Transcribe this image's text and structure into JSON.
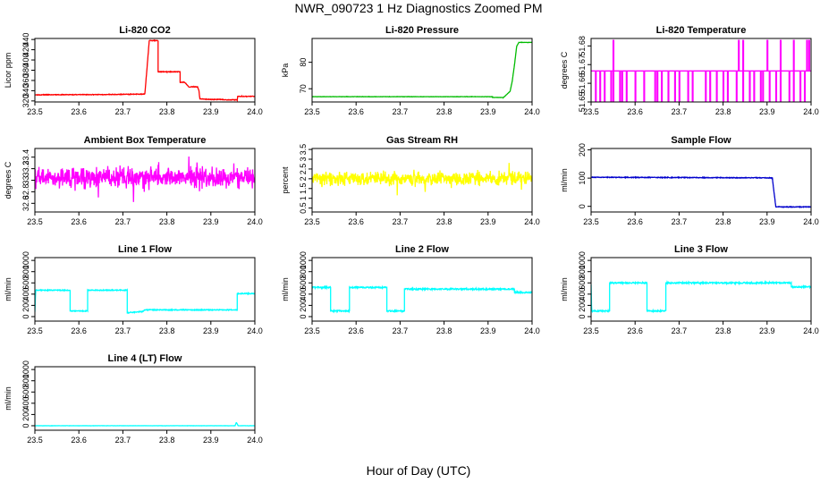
{
  "title": "NWR_090723  1 Hz Diagnostics Zoomed PM",
  "xlabel": "Hour of Day (UTC)",
  "chart_data": [
    {
      "name": "Li-820 CO2",
      "type": "line",
      "color": "#ff0000",
      "ylabel": "Licor ppm",
      "xlim": [
        23.5,
        24.0
      ],
      "xticks": [
        23.5,
        23.6,
        23.7,
        23.8,
        23.9,
        24.0
      ],
      "ylim": [
        318,
        442
      ],
      "yticks": [
        320,
        340,
        360,
        380,
        400,
        420,
        440
      ],
      "x": [
        23.5,
        23.66,
        23.66,
        23.75,
        23.75,
        23.7501,
        23.76,
        23.78,
        23.78,
        23.8,
        23.83,
        23.83,
        23.84,
        23.85,
        23.86,
        23.87,
        23.873,
        23.875,
        23.9,
        23.92,
        23.94,
        23.95,
        23.955,
        23.96,
        23.961,
        23.97,
        23.98,
        23.99,
        24.0
      ],
      "y": [
        332,
        332.5,
        332.5,
        333.4,
        333.4,
        335,
        438,
        438,
        377,
        377,
        377,
        356,
        357,
        347.4,
        347.6,
        347.4,
        340,
        324,
        323,
        323,
        322,
        322.3,
        322,
        322,
        329,
        329,
        329,
        329,
        329
      ],
      "noise": 0.6
    },
    {
      "name": "Li-820 Pressure",
      "type": "line",
      "color": "#00bb00",
      "ylabel": "kPa",
      "xlim": [
        23.5,
        24.0
      ],
      "xticks": [
        23.5,
        23.6,
        23.7,
        23.8,
        23.9,
        24.0
      ],
      "ylim": [
        65,
        89
      ],
      "yticks": [
        70,
        80
      ],
      "x": [
        23.5,
        23.91,
        23.91,
        23.935,
        23.95,
        23.955,
        23.96,
        23.965,
        23.97,
        23.975,
        24.0
      ],
      "y": [
        67,
        67,
        66.7,
        66.7,
        69,
        73,
        79,
        86,
        87.5,
        87.5,
        87.5
      ],
      "noise": 0.05
    },
    {
      "name": "Li-820 Temperature",
      "type": "line",
      "color": "#ff00ff",
      "ylabel": "degrees C",
      "xlim": [
        23.5,
        24.0
      ],
      "xticks": [
        23.5,
        23.6,
        23.7,
        23.8,
        23.9,
        24.0
      ],
      "ylim": [
        51.65,
        51.684
      ],
      "yticks": [
        51.65,
        51.66,
        51.67,
        51.68
      ],
      "base": 51.6666,
      "low": 51.6495,
      "high": 51.683,
      "dips": [
        23.51,
        23.52,
        23.53,
        23.545,
        23.55,
        23.565,
        23.57,
        23.58,
        23.6,
        23.62,
        23.645,
        23.65,
        23.66,
        23.675,
        23.69,
        23.7,
        23.72,
        23.73,
        23.76,
        23.77,
        23.785,
        23.8,
        23.81,
        23.83,
        23.845,
        23.86,
        23.87,
        23.885,
        23.89,
        23.905,
        23.92,
        23.93,
        23.95,
        23.96,
        23.975,
        23.985
      ],
      "spikes": [
        23.55,
        23.835,
        23.845,
        23.9,
        23.93,
        23.96,
        23.99,
        23.995
      ]
    },
    {
      "name": "Ambient Box Temperature",
      "type": "line",
      "color": "#ff00ff",
      "ylabel": "degrees C",
      "xlim": [
        23.5,
        24.0
      ],
      "xticks": [
        23.5,
        23.6,
        23.7,
        23.8,
        23.9,
        24.0
      ],
      "ylim": [
        32.45,
        33.55
      ],
      "yticks": [
        32.6,
        32.8,
        33.0,
        33.2,
        33.4
      ],
      "mean": 33.05,
      "spread": 0.12,
      "seed": 7
    },
    {
      "name": "Gas Stream RH",
      "type": "line",
      "color": "#ffff00",
      "ylabel": "percent",
      "xlim": [
        23.5,
        24.0
      ],
      "xticks": [
        23.5,
        23.6,
        23.7,
        23.8,
        23.9,
        24.0
      ],
      "ylim": [
        0.3,
        3.55
      ],
      "yticks": [
        0.5,
        1.0,
        1.5,
        2.0,
        2.5,
        3.0,
        3.5
      ],
      "mean": 2.0,
      "spread": 0.25,
      "seed": 11
    },
    {
      "name": "Sample Flow",
      "type": "line",
      "color": "#0000cc",
      "ylabel": "ml/min",
      "xlim": [
        23.5,
        24.0
      ],
      "xticks": [
        23.5,
        23.6,
        23.7,
        23.8,
        23.9,
        24.0
      ],
      "ylim": [
        -20,
        205
      ],
      "yticks": [
        0,
        100,
        200
      ],
      "x": [
        23.5,
        23.91,
        23.912,
        23.915,
        23.92,
        24.0
      ],
      "y": [
        103,
        101,
        101,
        60,
        -2,
        -2
      ],
      "noise": 1.2
    },
    {
      "name": "Line 1 Flow",
      "type": "line",
      "color": "#00ffff",
      "ylabel": "ml/min",
      "xlim": [
        23.5,
        24.0
      ],
      "xticks": [
        23.5,
        23.6,
        23.7,
        23.8,
        23.9,
        24.0
      ],
      "ylim": [
        -80,
        1050
      ],
      "yticks": [
        0,
        200,
        400,
        600,
        800,
        1000
      ],
      "x": [
        23.5,
        23.501,
        23.502,
        23.58,
        23.58,
        23.62,
        23.62,
        23.71,
        23.71,
        23.745,
        23.75,
        23.96,
        23.96,
        24.0
      ],
      "y": [
        90,
        300,
        470,
        470,
        100,
        100,
        470,
        470,
        70,
        90,
        120,
        120,
        410,
        410
      ],
      "noise": 8
    },
    {
      "name": "Line 2 Flow",
      "type": "line",
      "color": "#00ffff",
      "ylabel": "ml/min",
      "xlim": [
        23.5,
        24.0
      ],
      "xticks": [
        23.5,
        23.6,
        23.7,
        23.8,
        23.9,
        24.0
      ],
      "ylim": [
        -80,
        1050
      ],
      "yticks": [
        0,
        200,
        400,
        600,
        800,
        1000
      ],
      "x": [
        23.5,
        23.542,
        23.542,
        23.585,
        23.585,
        23.67,
        23.67,
        23.71,
        23.71,
        23.96,
        23.96,
        24.0
      ],
      "y": [
        520,
        520,
        100,
        100,
        520,
        520,
        100,
        100,
        490,
        490,
        430,
        430
      ],
      "noise": 12
    },
    {
      "name": "Line 3 Flow",
      "type": "line",
      "color": "#00ffff",
      "ylabel": "ml/min",
      "xlim": [
        23.5,
        24.0
      ],
      "xticks": [
        23.5,
        23.6,
        23.7,
        23.8,
        23.9,
        24.0
      ],
      "ylim": [
        -80,
        1050
      ],
      "yticks": [
        0,
        200,
        400,
        600,
        800,
        1000
      ],
      "x": [
        23.5,
        23.501,
        23.502,
        23.542,
        23.542,
        23.627,
        23.627,
        23.67,
        23.67,
        23.955,
        23.955,
        24.0
      ],
      "y": [
        570,
        200,
        100,
        100,
        600,
        600,
        100,
        100,
        600,
        600,
        530,
        530
      ],
      "noise": 12
    },
    {
      "name": "Line 4 (LT) Flow",
      "type": "line",
      "color": "#00ffff",
      "ylabel": "ml/min",
      "xlim": [
        23.5,
        24.0
      ],
      "xticks": [
        23.5,
        23.6,
        23.7,
        23.8,
        23.9,
        24.0
      ],
      "ylim": [
        -80,
        1050
      ],
      "yticks": [
        0,
        200,
        400,
        600,
        800,
        1000
      ],
      "x": [
        23.5,
        23.955,
        23.958,
        23.962,
        23.965,
        24.0
      ],
      "y": [
        0,
        0,
        60,
        0,
        0,
        0
      ],
      "noise": 1.5
    }
  ]
}
